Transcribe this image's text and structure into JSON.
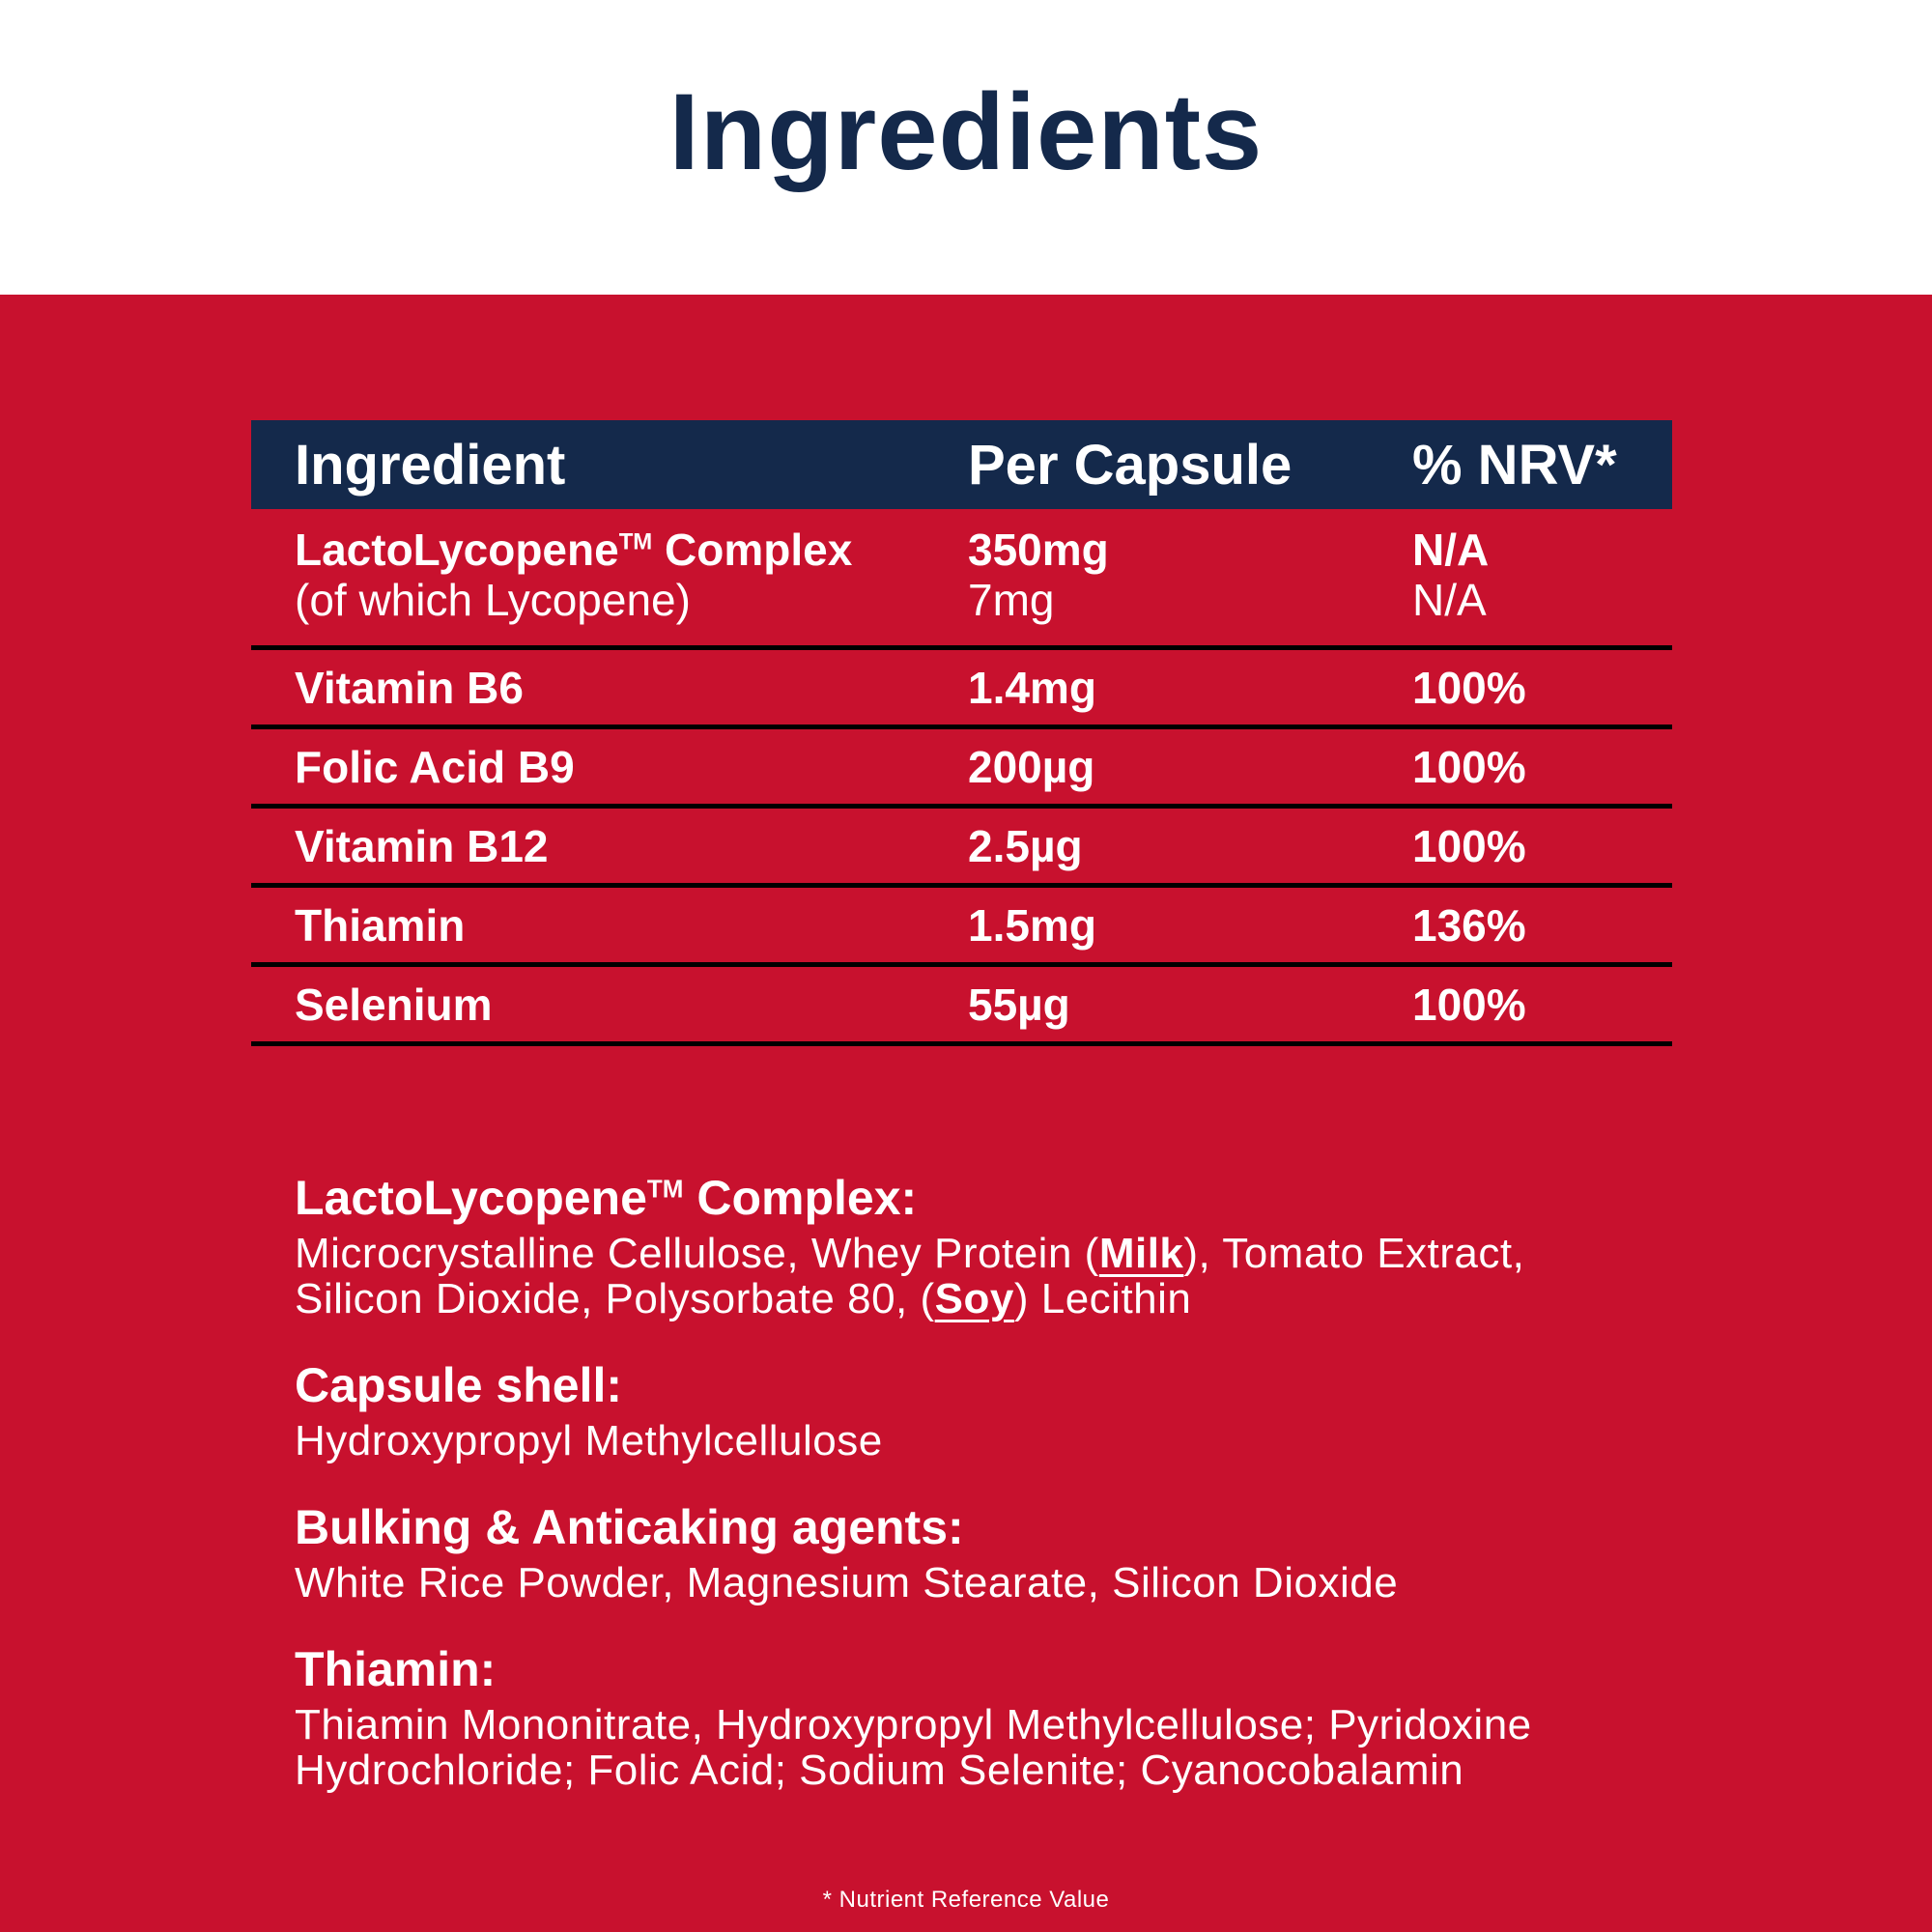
{
  "title": "Ingredients",
  "colors": {
    "red": "#C8112E",
    "navy": "#14294B",
    "line": "#000000",
    "text_white": "#FFFFFF"
  },
  "table": {
    "col_headers": [
      "Ingredient",
      "Per Capsule",
      "% NRV*"
    ],
    "main_row": {
      "name_pre": "LactoLycopene",
      "name_tm": "TM",
      "name_post": " Complex",
      "per_capsule": "350mg",
      "nrv": "N/A",
      "sub_name": "(of which Lycopene)",
      "sub_per_capsule": "7mg",
      "sub_nrv": "N/A"
    },
    "rows": [
      {
        "name": "Vitamin B6",
        "per_capsule": "1.4mg",
        "nrv": "100%"
      },
      {
        "name": "Folic Acid B9",
        "per_capsule": "200µg",
        "nrv": "100%"
      },
      {
        "name": "Vitamin B12",
        "per_capsule": "2.5µg",
        "nrv": "100%"
      },
      {
        "name": "Thiamin",
        "per_capsule": "1.5mg",
        "nrv": "136%"
      },
      {
        "name": "Selenium",
        "per_capsule": "55µg",
        "nrv": "100%"
      }
    ]
  },
  "sections": {
    "lactolycopene": {
      "heading_pre": "LactoLycopene",
      "heading_tm": "TM",
      "heading_post": " Complex:",
      "body_part1": "Microcrystalline Cellulose, Whey Protein (",
      "allergen1": "Milk",
      "body_part2": "), Tomato Extract, Silicon Dioxide, Polysorbate 80, (",
      "allergen2": "Soy",
      "body_part3": ") Lecithin"
    },
    "capsule_shell": {
      "heading": "Capsule shell:",
      "body": "Hydroxypropyl Methylcellulose"
    },
    "bulking": {
      "heading": "Bulking & Anticaking agents:",
      "body": "White Rice Powder, Magnesium Stearate, Silicon Dioxide"
    },
    "thiamin": {
      "heading": "Thiamin:",
      "body": "Thiamin Mononitrate, Hydroxypropyl Methylcellulose; Pyridoxine Hydrochloride; Folic Acid; Sodium Selenite; Cyanocobalamin"
    }
  },
  "footnote": "* Nutrient Reference Value"
}
